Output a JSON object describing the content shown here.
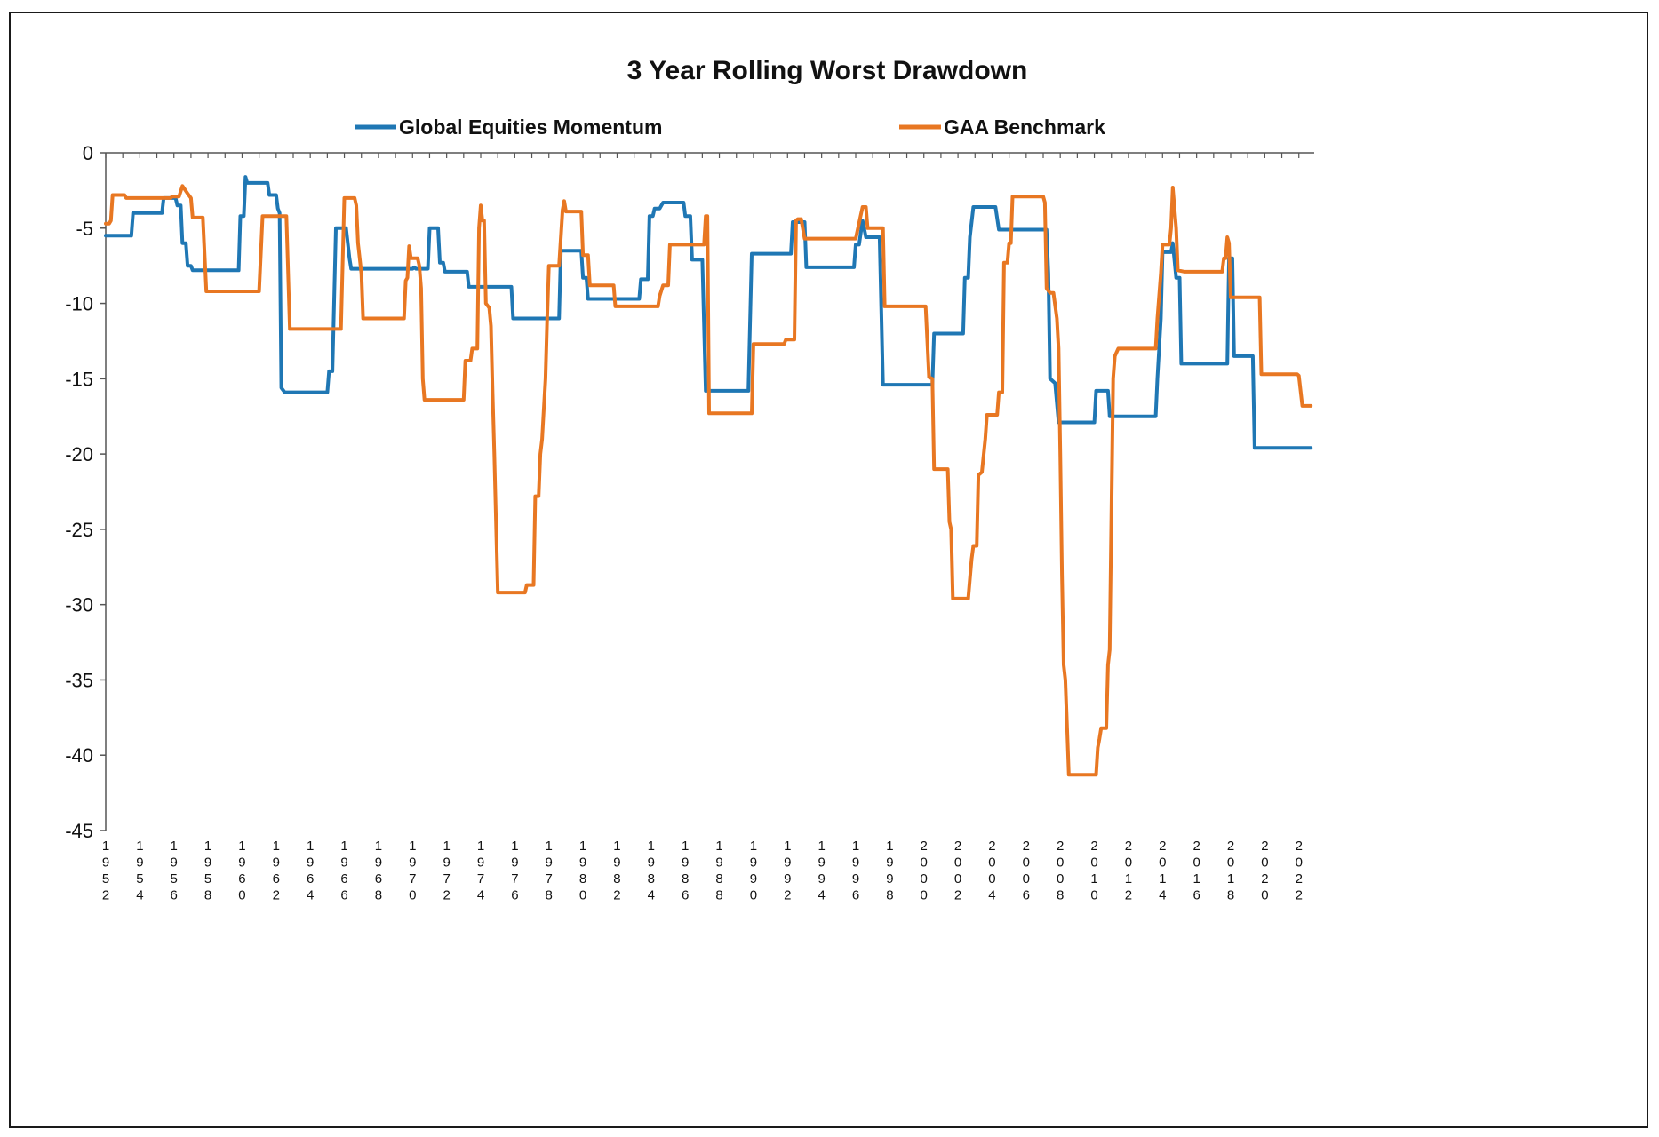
{
  "chart_data": {
    "type": "line",
    "title": "3 Year Rolling Worst Drawdown",
    "xlabel": "",
    "ylabel": "",
    "ylim": [
      -45,
      0
    ],
    "xlim": [
      1952,
      2022.9
    ],
    "y_ticks": [
      0,
      -5,
      -10,
      -15,
      -20,
      -25,
      -30,
      -35,
      -40,
      -45
    ],
    "x_tick_labels": [
      "1952",
      "1954",
      "1956",
      "1958",
      "1960",
      "1962",
      "1964",
      "1966",
      "1968",
      "1970",
      "1972",
      "1974",
      "1976",
      "1978",
      "1980",
      "1982",
      "1984",
      "1986",
      "1988",
      "1990",
      "1992",
      "1994",
      "1996",
      "1998",
      "2000",
      "2002",
      "2004",
      "2006",
      "2008",
      "2010",
      "2012",
      "2014",
      "2016",
      "2018",
      "2020",
      "2022"
    ],
    "grid": false,
    "legend_position": "top",
    "series": [
      {
        "name": "Global Equities Momentum",
        "color": "#1f77b4",
        "points": [
          [
            1952.0,
            -5.5
          ],
          [
            1953.5,
            -5.5
          ],
          [
            1953.6,
            -4.0
          ],
          [
            1955.3,
            -4.0
          ],
          [
            1955.4,
            -3.0
          ],
          [
            1956.1,
            -3.0
          ],
          [
            1956.2,
            -3.5
          ],
          [
            1956.4,
            -3.5
          ],
          [
            1956.5,
            -6.0
          ],
          [
            1956.7,
            -6.0
          ],
          [
            1956.8,
            -7.5
          ],
          [
            1957.0,
            -7.5
          ],
          [
            1957.1,
            -7.8
          ],
          [
            1959.8,
            -7.8
          ],
          [
            1959.9,
            -4.2
          ],
          [
            1960.1,
            -4.2
          ],
          [
            1960.2,
            -1.6
          ],
          [
            1960.3,
            -2.0
          ],
          [
            1961.5,
            -2.0
          ],
          [
            1961.6,
            -2.8
          ],
          [
            1962.0,
            -2.8
          ],
          [
            1962.1,
            -3.7
          ],
          [
            1962.2,
            -4.0
          ],
          [
            1962.3,
            -15.6
          ],
          [
            1962.5,
            -15.9
          ],
          [
            1965.0,
            -15.9
          ],
          [
            1965.1,
            -14.5
          ],
          [
            1965.3,
            -14.5
          ],
          [
            1965.5,
            -5.0
          ],
          [
            1966.1,
            -5.0
          ],
          [
            1966.3,
            -7.0
          ],
          [
            1966.4,
            -7.7
          ],
          [
            1970.0,
            -7.7
          ],
          [
            1970.1,
            -7.6
          ],
          [
            1970.2,
            -7.7
          ],
          [
            1970.9,
            -7.7
          ],
          [
            1971.0,
            -5.0
          ],
          [
            1971.5,
            -5.0
          ],
          [
            1971.6,
            -7.3
          ],
          [
            1971.8,
            -7.3
          ],
          [
            1971.9,
            -7.9
          ],
          [
            1973.2,
            -7.9
          ],
          [
            1973.3,
            -8.9
          ],
          [
            1975.8,
            -8.9
          ],
          [
            1975.9,
            -11.0
          ],
          [
            1978.6,
            -11.0
          ],
          [
            1978.7,
            -6.5
          ],
          [
            1979.9,
            -6.5
          ],
          [
            1980.0,
            -8.3
          ],
          [
            1980.2,
            -8.3
          ],
          [
            1980.3,
            -9.7
          ],
          [
            1983.3,
            -9.7
          ],
          [
            1983.4,
            -8.4
          ],
          [
            1983.8,
            -8.4
          ],
          [
            1983.9,
            -4.2
          ],
          [
            1984.1,
            -4.2
          ],
          [
            1984.2,
            -3.7
          ],
          [
            1984.5,
            -3.7
          ],
          [
            1984.7,
            -3.3
          ],
          [
            1985.9,
            -3.3
          ],
          [
            1986.0,
            -4.2
          ],
          [
            1986.3,
            -4.2
          ],
          [
            1986.4,
            -7.1
          ],
          [
            1987.0,
            -7.1
          ],
          [
            1987.2,
            -15.8
          ],
          [
            1989.7,
            -15.8
          ],
          [
            1989.9,
            -6.7
          ],
          [
            1992.2,
            -6.7
          ],
          [
            1992.3,
            -4.6
          ],
          [
            1993.0,
            -4.6
          ],
          [
            1993.1,
            -7.6
          ],
          [
            1995.9,
            -7.6
          ],
          [
            1996.0,
            -6.1
          ],
          [
            1996.2,
            -6.1
          ],
          [
            1996.4,
            -4.5
          ],
          [
            1996.6,
            -5.6
          ],
          [
            1997.4,
            -5.6
          ],
          [
            1997.6,
            -15.4
          ],
          [
            2000.5,
            -15.4
          ],
          [
            2000.6,
            -12.0
          ],
          [
            2002.3,
            -12.0
          ],
          [
            2002.4,
            -8.3
          ],
          [
            2002.6,
            -8.3
          ],
          [
            2002.7,
            -5.6
          ],
          [
            2002.9,
            -3.6
          ],
          [
            2004.2,
            -3.6
          ],
          [
            2004.4,
            -5.1
          ],
          [
            2007.2,
            -5.1
          ],
          [
            2007.3,
            -8.0
          ],
          [
            2007.4,
            -15.0
          ],
          [
            2007.7,
            -15.3
          ],
          [
            2007.9,
            -17.9
          ],
          [
            2010.0,
            -17.9
          ],
          [
            2010.1,
            -15.8
          ],
          [
            2010.8,
            -15.8
          ],
          [
            2010.9,
            -17.5
          ],
          [
            2013.6,
            -17.5
          ],
          [
            2013.7,
            -15.0
          ],
          [
            2013.9,
            -11.0
          ],
          [
            2014.0,
            -6.6
          ],
          [
            2014.5,
            -6.6
          ],
          [
            2014.6,
            -6.0
          ],
          [
            2014.8,
            -8.3
          ],
          [
            2015.0,
            -8.3
          ],
          [
            2015.1,
            -14.0
          ],
          [
            2017.8,
            -14.0
          ],
          [
            2017.9,
            -7.0
          ],
          [
            2018.1,
            -7.0
          ],
          [
            2018.2,
            -13.5
          ],
          [
            2019.3,
            -13.5
          ],
          [
            2019.4,
            -19.6
          ],
          [
            2022.7,
            -19.6
          ]
        ]
      },
      {
        "name": "GAA Benchmark",
        "color": "#e87722",
        "points": [
          [
            1952.0,
            -4.7
          ],
          [
            1952.2,
            -4.7
          ],
          [
            1952.3,
            -4.5
          ],
          [
            1952.4,
            -2.8
          ],
          [
            1953.1,
            -2.8
          ],
          [
            1953.2,
            -3.0
          ],
          [
            1955.8,
            -3.0
          ],
          [
            1955.9,
            -2.9
          ],
          [
            1956.3,
            -2.9
          ],
          [
            1956.5,
            -2.2
          ],
          [
            1956.8,
            -2.7
          ],
          [
            1957.0,
            -3.0
          ],
          [
            1957.1,
            -4.3
          ],
          [
            1957.7,
            -4.3
          ],
          [
            1957.9,
            -9.2
          ],
          [
            1961.0,
            -9.2
          ],
          [
            1961.2,
            -4.2
          ],
          [
            1962.6,
            -4.2
          ],
          [
            1962.8,
            -11.7
          ],
          [
            1965.8,
            -11.7
          ],
          [
            1966.0,
            -3.0
          ],
          [
            1966.6,
            -3.0
          ],
          [
            1966.7,
            -3.5
          ],
          [
            1966.8,
            -6.0
          ],
          [
            1967.0,
            -8.0
          ],
          [
            1967.1,
            -11.0
          ],
          [
            1969.5,
            -11.0
          ],
          [
            1969.6,
            -8.5
          ],
          [
            1969.7,
            -8.3
          ],
          [
            1969.8,
            -6.2
          ],
          [
            1969.9,
            -7.0
          ],
          [
            1970.3,
            -7.0
          ],
          [
            1970.4,
            -7.5
          ],
          [
            1970.5,
            -9.0
          ],
          [
            1970.6,
            -15.0
          ],
          [
            1970.7,
            -16.4
          ],
          [
            1973.0,
            -16.4
          ],
          [
            1973.1,
            -13.8
          ],
          [
            1973.4,
            -13.8
          ],
          [
            1973.5,
            -13.0
          ],
          [
            1973.8,
            -13.0
          ],
          [
            1973.9,
            -5.0
          ],
          [
            1974.0,
            -3.5
          ],
          [
            1974.1,
            -4.5
          ],
          [
            1974.2,
            -4.5
          ],
          [
            1974.3,
            -10.0
          ],
          [
            1974.5,
            -10.3
          ],
          [
            1974.6,
            -11.5
          ],
          [
            1974.7,
            -16.0
          ],
          [
            1974.8,
            -20.0
          ],
          [
            1975.0,
            -29.2
          ],
          [
            1976.6,
            -29.2
          ],
          [
            1976.7,
            -28.7
          ],
          [
            1977.1,
            -28.7
          ],
          [
            1977.2,
            -22.8
          ],
          [
            1977.4,
            -22.8
          ],
          [
            1977.5,
            -20.0
          ],
          [
            1977.6,
            -19.0
          ],
          [
            1977.8,
            -15.0
          ],
          [
            1977.9,
            -11.0
          ],
          [
            1978.0,
            -7.5
          ],
          [
            1978.6,
            -7.5
          ],
          [
            1978.8,
            -3.8
          ],
          [
            1978.9,
            -3.2
          ],
          [
            1979.0,
            -3.9
          ],
          [
            1979.9,
            -3.9
          ],
          [
            1980.0,
            -6.8
          ],
          [
            1980.3,
            -6.8
          ],
          [
            1980.4,
            -8.8
          ],
          [
            1981.8,
            -8.8
          ],
          [
            1981.9,
            -10.2
          ],
          [
            1984.4,
            -10.2
          ],
          [
            1984.5,
            -9.5
          ],
          [
            1984.7,
            -8.8
          ],
          [
            1985.0,
            -8.8
          ],
          [
            1985.1,
            -6.1
          ],
          [
            1987.1,
            -6.1
          ],
          [
            1987.2,
            -4.2
          ],
          [
            1987.3,
            -4.2
          ],
          [
            1987.4,
            -17.3
          ],
          [
            1989.9,
            -17.3
          ],
          [
            1990.0,
            -12.7
          ],
          [
            1991.8,
            -12.7
          ],
          [
            1991.9,
            -12.4
          ],
          [
            1992.4,
            -12.4
          ],
          [
            1992.5,
            -4.5
          ],
          [
            1992.6,
            -4.4
          ],
          [
            1992.8,
            -4.4
          ],
          [
            1993.0,
            -5.7
          ],
          [
            1996.0,
            -5.7
          ],
          [
            1996.4,
            -3.6
          ],
          [
            1996.6,
            -3.6
          ],
          [
            1996.7,
            -5.0
          ],
          [
            1997.6,
            -5.0
          ],
          [
            1997.7,
            -10.2
          ],
          [
            2000.1,
            -10.2
          ],
          [
            2000.3,
            -14.9
          ],
          [
            2000.5,
            -15.0
          ],
          [
            2000.6,
            -21.0
          ],
          [
            2001.4,
            -21.0
          ],
          [
            2001.5,
            -24.5
          ],
          [
            2001.6,
            -25.0
          ],
          [
            2001.7,
            -29.6
          ],
          [
            2002.6,
            -29.6
          ],
          [
            2002.8,
            -27.0
          ],
          [
            2002.9,
            -26.1
          ],
          [
            2003.1,
            -26.1
          ],
          [
            2003.2,
            -21.4
          ],
          [
            2003.4,
            -21.2
          ],
          [
            2003.6,
            -19.0
          ],
          [
            2003.7,
            -17.4
          ],
          [
            2004.3,
            -17.4
          ],
          [
            2004.4,
            -15.9
          ],
          [
            2004.6,
            -15.9
          ],
          [
            2004.7,
            -7.3
          ],
          [
            2004.9,
            -7.3
          ],
          [
            2005.0,
            -6.0
          ],
          [
            2005.1,
            -6.0
          ],
          [
            2005.2,
            -2.9
          ],
          [
            2007.0,
            -2.9
          ],
          [
            2007.1,
            -3.3
          ],
          [
            2007.2,
            -9.0
          ],
          [
            2007.4,
            -9.3
          ],
          [
            2007.6,
            -9.3
          ],
          [
            2007.8,
            -11.0
          ],
          [
            2007.9,
            -13.0
          ],
          [
            2008.0,
            -20.0
          ],
          [
            2008.1,
            -28.0
          ],
          [
            2008.2,
            -34.0
          ],
          [
            2008.3,
            -35.0
          ],
          [
            2008.5,
            -41.3
          ],
          [
            2010.1,
            -41.3
          ],
          [
            2010.2,
            -39.5
          ],
          [
            2010.3,
            -38.9
          ],
          [
            2010.4,
            -38.2
          ],
          [
            2010.7,
            -38.2
          ],
          [
            2010.8,
            -34.0
          ],
          [
            2010.9,
            -33.0
          ],
          [
            2011.1,
            -15.0
          ],
          [
            2011.2,
            -13.5
          ],
          [
            2011.4,
            -13.0
          ],
          [
            2013.6,
            -13.0
          ],
          [
            2013.7,
            -11.0
          ],
          [
            2013.9,
            -8.0
          ],
          [
            2014.0,
            -6.1
          ],
          [
            2014.4,
            -6.1
          ],
          [
            2014.5,
            -5.0
          ],
          [
            2014.6,
            -2.3
          ],
          [
            2014.8,
            -5.0
          ],
          [
            2014.9,
            -7.8
          ],
          [
            2015.3,
            -7.9
          ],
          [
            2017.5,
            -7.9
          ],
          [
            2017.6,
            -7.0
          ],
          [
            2017.7,
            -7.0
          ],
          [
            2017.8,
            -5.6
          ],
          [
            2017.9,
            -6.0
          ],
          [
            2018.0,
            -9.6
          ],
          [
            2019.7,
            -9.6
          ],
          [
            2019.8,
            -14.7
          ],
          [
            2021.9,
            -14.7
          ],
          [
            2022.0,
            -14.8
          ],
          [
            2022.2,
            -16.8
          ],
          [
            2022.7,
            -16.8
          ]
        ]
      }
    ]
  }
}
